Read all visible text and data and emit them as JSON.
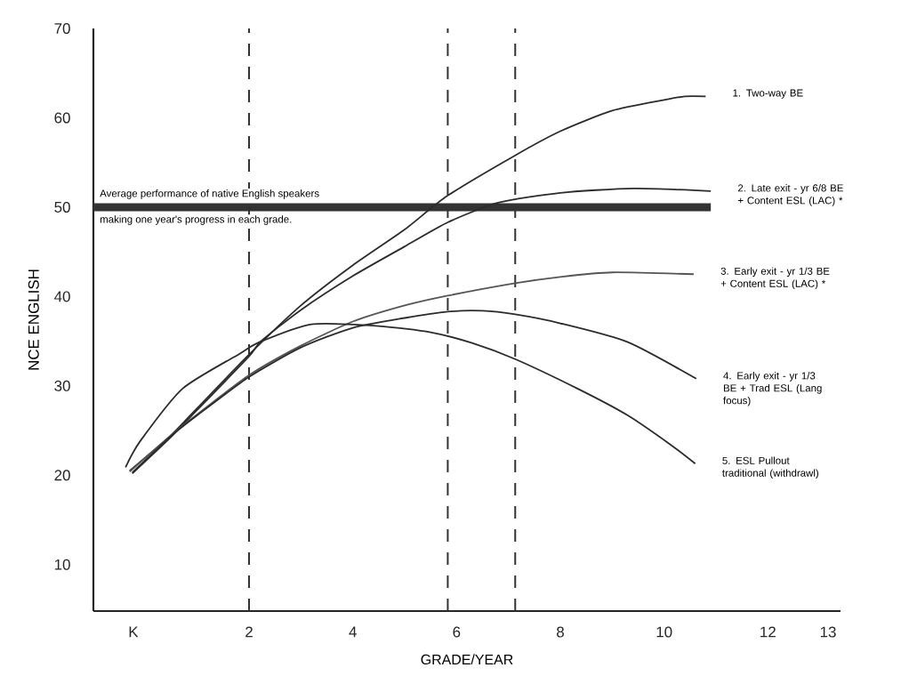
{
  "chart_data": {
    "type": "line",
    "xlabel": "GRADE/YEAR",
    "ylabel": "NCE ENGLISH",
    "xlim": [
      -1.0,
      13.4
    ],
    "ylim": [
      4.8,
      70
    ],
    "xticks": [
      {
        "value": -0.23,
        "label": "K"
      },
      2,
      4,
      6,
      8,
      10,
      12,
      {
        "value": 13.16,
        "label": "13"
      }
    ],
    "yticks": [
      10,
      20,
      30,
      40,
      50,
      60,
      70
    ],
    "marker": "none",
    "grid": false,
    "series": [
      {
        "name": "1. Two-way BE",
        "color": "#2b2b2b",
        "x": [
          -0.3,
          0.5,
          1,
          2,
          3,
          4,
          5,
          5.83,
          7.13,
          8,
          9,
          10,
          10.4,
          10.8
        ],
        "values": [
          20.5,
          24.5,
          27.5,
          33.5,
          39,
          43.5,
          47.5,
          51.3,
          55.8,
          58.5,
          60.8,
          62,
          62.4,
          62.4
        ]
      },
      {
        "name": "2. Late exit - yr 6/8 BE + Content ESL (LAC) *",
        "color": "#2b2b2b",
        "x": [
          -0.25,
          0.5,
          1,
          2,
          2.23,
          3,
          4,
          5,
          5.83,
          6.8,
          8,
          9.4,
          10.9
        ],
        "values": [
          20.2,
          24.3,
          27.3,
          33.3,
          35,
          38.5,
          42.3,
          45.6,
          48.3,
          50.5,
          51.6,
          52.1,
          51.8
        ]
      },
      {
        "name": "3. Early exit - yr 1/3 BE + Content ESL (LAC) *",
        "color": "#555555",
        "x": [
          -0.3,
          0.5,
          1,
          2,
          3,
          4,
          5,
          5.83,
          7.13,
          8,
          9,
          10.57
        ],
        "values": [
          20.4,
          24.5,
          26.8,
          31.2,
          34.5,
          37.2,
          39,
          40.1,
          41.5,
          42.2,
          42.7,
          42.5
        ]
      },
      {
        "name": "4. Early exit - yr 1/3 BE + Trad ESL (Lang focus)",
        "color": "#2b2b2b",
        "x": [
          -0.25,
          0.5,
          1,
          2,
          3,
          4,
          5,
          5.83,
          6.5,
          7.13,
          8,
          9.3,
          10.62
        ],
        "values": [
          20.3,
          24.4,
          26.7,
          31,
          34.3,
          36.5,
          37.6,
          38.3,
          38.4,
          38,
          37,
          34.9,
          30.8
        ]
      },
      {
        "name": "5. ESL Pullout traditional (withdrawl)",
        "color": "#2b2b2b",
        "x": [
          -0.38,
          -0.1,
          0.72,
          1.82,
          2.2,
          3.2,
          4.5,
          5.5,
          6.3,
          7.13,
          8.33,
          9.3,
          10.13,
          10.6
        ],
        "values": [
          20.9,
          23.8,
          29.7,
          33.6,
          34.9,
          36.9,
          36.7,
          36,
          34.8,
          33,
          29.7,
          26.7,
          23.4,
          21.3
        ]
      }
    ],
    "ref_lines": [
      {
        "axis": "y",
        "value": 50,
        "color": "#333333",
        "line_style": "solid"
      },
      {
        "axis": "x",
        "value": 2,
        "color": "#333333",
        "line_style": "dashed"
      },
      {
        "axis": "x",
        "value": 5.83,
        "color": "#333333",
        "line_style": "dashed"
      },
      {
        "axis": "x",
        "value": 7.13,
        "color": "#333333",
        "line_style": "dashed"
      }
    ],
    "annotations": [
      "Average performance of native English speakers",
      "making one year's progress in each grade."
    ]
  }
}
